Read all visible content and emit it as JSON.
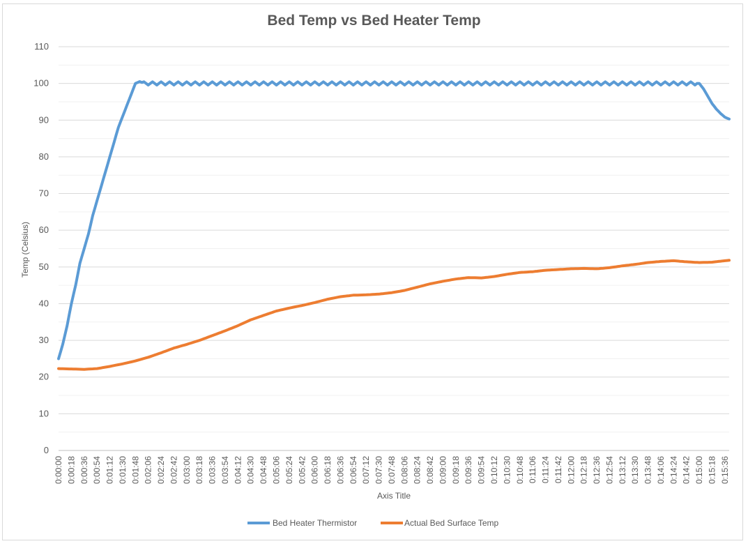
{
  "chart_data": {
    "type": "line",
    "title": "Bed Temp vs Bed Heater Temp",
    "xlabel": "Axis Title",
    "ylabel": "Temp (Celsius)",
    "ylim": [
      0,
      110
    ],
    "y_ticks": [
      0,
      10,
      20,
      30,
      40,
      50,
      60,
      70,
      80,
      90,
      100,
      110
    ],
    "x_tick_labels": [
      "0:00:00",
      "0:00:18",
      "0:00:36",
      "0:00:54",
      "0:01:12",
      "0:01:30",
      "0:01:48",
      "0:02:06",
      "0:02:24",
      "0:02:42",
      "0:03:00",
      "0:03:18",
      "0:03:36",
      "0:03:54",
      "0:04:12",
      "0:04:30",
      "0:04:48",
      "0:05:06",
      "0:05:24",
      "0:05:42",
      "0:06:00",
      "0:06:18",
      "0:06:36",
      "0:06:54",
      "0:07:12",
      "0:07:30",
      "0:07:48",
      "0:08:06",
      "0:08:24",
      "0:08:42",
      "0:09:00",
      "0:09:18",
      "0:09:36",
      "0:09:54",
      "0:10:12",
      "0:10:30",
      "0:10:48",
      "0:11:06",
      "0:11:24",
      "0:11:42",
      "0:12:00",
      "0:12:18",
      "0:12:36",
      "0:12:54",
      "0:13:12",
      "0:13:30",
      "0:13:48",
      "0:14:06",
      "0:14:24",
      "0:14:42",
      "0:15:00",
      "0:15:18",
      "0:15:36"
    ],
    "grid": true,
    "legend_position": "bottom",
    "series": [
      {
        "name": "Bed Heater Thermistor",
        "color": "#5b9bd5",
        "x": [
          "0:00:00",
          "0:00:06",
          "0:00:12",
          "0:00:18",
          "0:00:24",
          "0:00:30",
          "0:00:36",
          "0:00:42",
          "0:00:48",
          "0:00:54",
          "0:01:00",
          "0:01:06",
          "0:01:12",
          "0:01:18",
          "0:01:24",
          "0:01:30",
          "0:01:36",
          "0:01:42",
          "0:01:48",
          "0:01:54",
          "0:02:00",
          "0:02:06",
          "0:02:12",
          "0:02:24",
          "0:05:00",
          "0:10:00",
          "0:14:30",
          "0:14:54",
          "0:15:00",
          "0:15:06",
          "0:15:12",
          "0:15:18",
          "0:15:24",
          "0:15:30",
          "0:15:36",
          "0:15:42"
        ],
        "values": [
          25,
          29,
          34,
          40,
          45,
          51,
          55,
          59,
          64,
          68,
          72,
          76,
          80,
          84,
          88,
          91,
          94,
          97,
          100,
          100.5,
          100,
          100,
          100,
          100,
          100,
          100,
          100,
          100,
          100,
          98.5,
          96.5,
          94.5,
          93,
          91.8,
          90.8,
          90.3
        ],
        "oscillation": "small ripple about 100"
      },
      {
        "name": "Actual Bed Surface Temp",
        "color": "#ed7d31",
        "x": [
          "0:00:00",
          "0:00:18",
          "0:00:36",
          "0:00:54",
          "0:01:12",
          "0:01:30",
          "0:01:48",
          "0:02:06",
          "0:02:24",
          "0:02:42",
          "0:03:00",
          "0:03:18",
          "0:03:36",
          "0:03:54",
          "0:04:12",
          "0:04:30",
          "0:04:48",
          "0:05:06",
          "0:05:24",
          "0:05:42",
          "0:06:00",
          "0:06:18",
          "0:06:36",
          "0:06:54",
          "0:07:12",
          "0:07:30",
          "0:07:48",
          "0:08:06",
          "0:08:24",
          "0:08:42",
          "0:09:00",
          "0:09:18",
          "0:09:36",
          "0:09:54",
          "0:10:12",
          "0:10:30",
          "0:10:48",
          "0:11:06",
          "0:11:24",
          "0:11:42",
          "0:12:00",
          "0:12:18",
          "0:12:36",
          "0:12:54",
          "0:13:12",
          "0:13:30",
          "0:13:48",
          "0:14:06",
          "0:14:24",
          "0:14:42",
          "0:15:00",
          "0:15:18",
          "0:15:36",
          "0:15:42"
        ],
        "values": [
          22.3,
          22.2,
          22.1,
          22.3,
          22.9,
          23.6,
          24.4,
          25.4,
          26.6,
          27.9,
          28.9,
          30.0,
          31.3,
          32.6,
          34.0,
          35.6,
          36.8,
          38.0,
          38.8,
          39.5,
          40.3,
          41.2,
          41.9,
          42.3,
          42.4,
          42.6,
          43.0,
          43.6,
          44.5,
          45.4,
          46.1,
          46.7,
          47.1,
          47.0,
          47.4,
          48.0,
          48.5,
          48.7,
          49.1,
          49.3,
          49.5,
          49.6,
          49.5,
          49.8,
          50.3,
          50.7,
          51.2,
          51.5,
          51.7,
          51.4,
          51.2,
          51.3,
          51.7,
          51.8
        ]
      }
    ]
  }
}
